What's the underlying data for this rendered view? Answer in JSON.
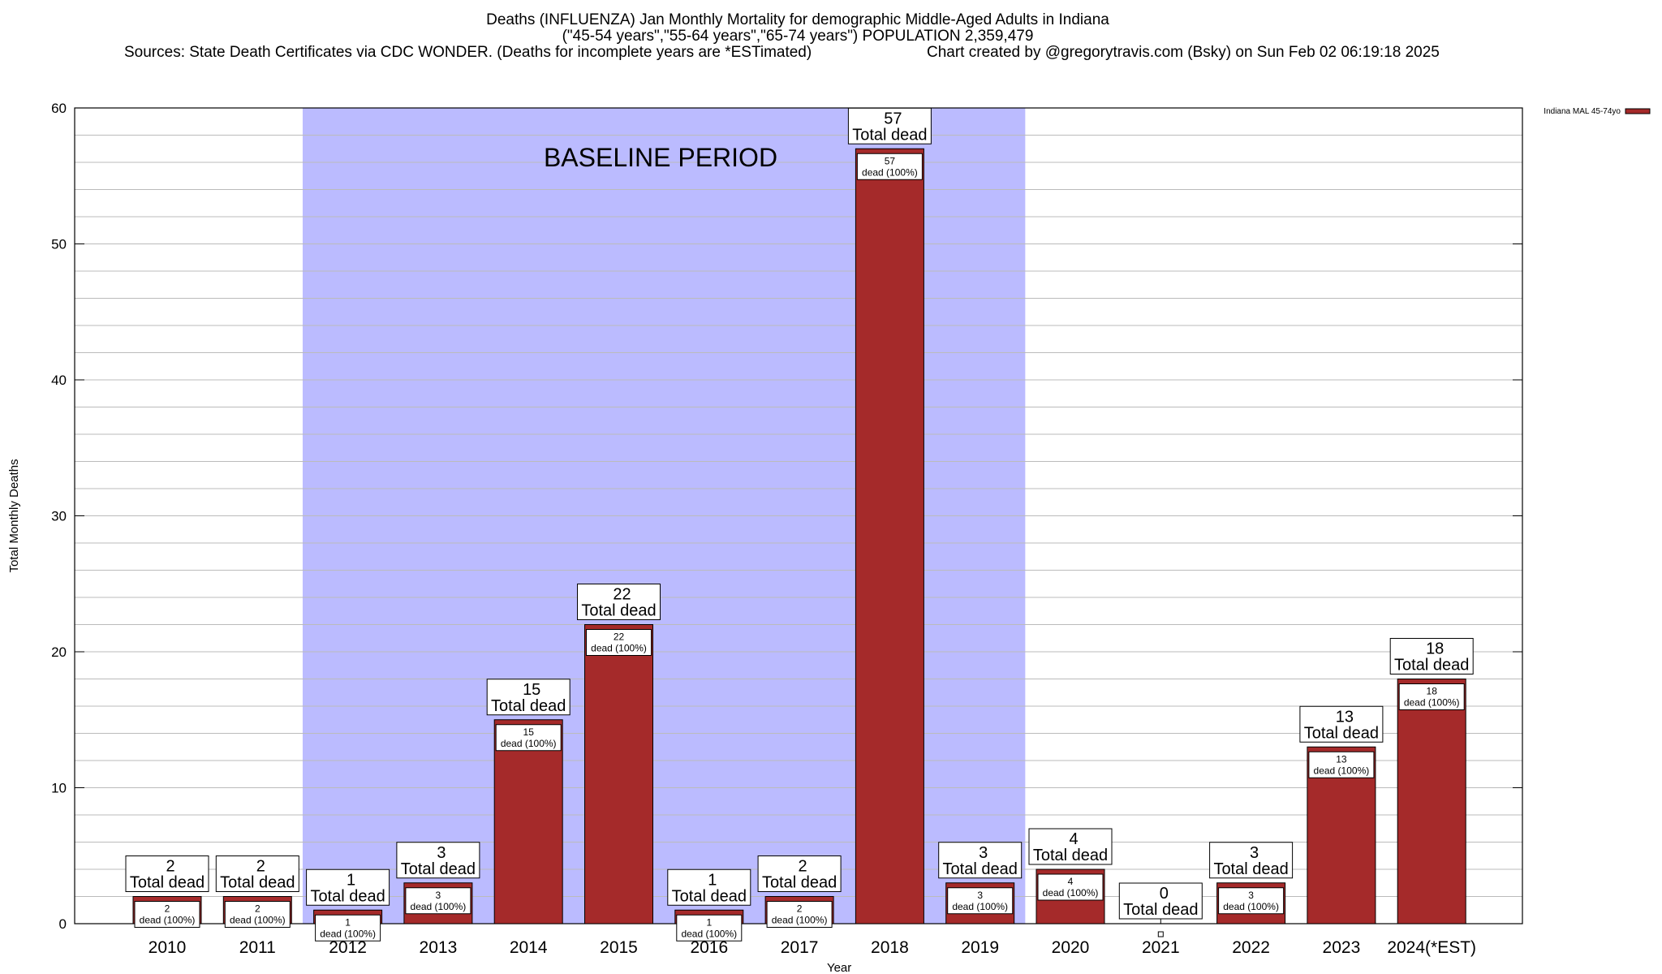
{
  "header": {
    "title_line1": "Deaths (INFLUENZA) Jan Monthly Mortality for demographic Middle-Aged Adults in Indiana",
    "title_line2": "(\"45-54 years\",\"55-64 years\",\"65-74 years\") POPULATION 2,359,479",
    "sources": "Sources: State Death Certificates via CDC WONDER. (Deaths for incomplete years are *ESTimated)",
    "credit": "Chart created by @gregorytravis.com (Bsky) on Sun Feb 02 06:19:18 2025"
  },
  "chart_data": {
    "type": "bar",
    "xlabel": "Year",
    "ylabel": "Total Monthly Deaths",
    "ylim": [
      0,
      60
    ],
    "yticks": [
      0,
      10,
      20,
      30,
      40,
      50,
      60
    ],
    "minor_grid_step": 2,
    "grid": true,
    "legend": {
      "label": "Indiana MAL 45-74yo",
      "placement": "top-right",
      "color": "#a52a2a"
    },
    "bar_color": "#a52a2a",
    "baseline": {
      "label": "BASELINE PERIOD",
      "from": "2012",
      "to": "2019",
      "color": "#bbbbff"
    },
    "total_label": "Total dead",
    "inner_label_suffix": "dead (100%)",
    "categories": [
      "2010",
      "2011",
      "2012",
      "2013",
      "2014",
      "2015",
      "2016",
      "2017",
      "2018",
      "2019",
      "2020",
      "2021",
      "2022",
      "2023",
      "2024(*EST)"
    ],
    "series": [
      {
        "name": "Indiana MAL 45-74yo",
        "values": [
          2,
          2,
          1,
          3,
          15,
          22,
          1,
          2,
          57,
          3,
          4,
          0,
          3,
          13,
          18
        ]
      }
    ]
  }
}
